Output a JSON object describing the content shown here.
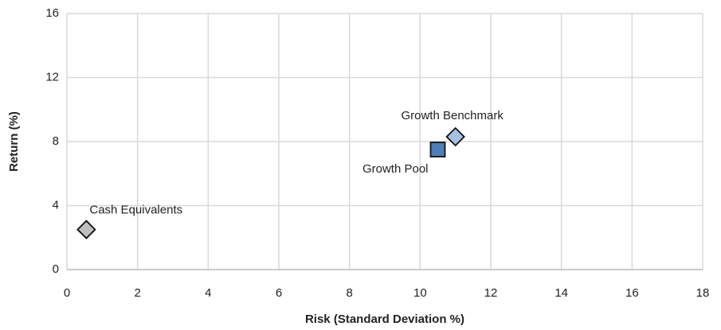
{
  "chart_data": {
    "type": "scatter",
    "xlabel": "Risk (Standard Deviation %)",
    "ylabel": "Return (%)",
    "xlim": [
      0,
      18
    ],
    "xticks": [
      0,
      2,
      4,
      6,
      8,
      10,
      12,
      14,
      16,
      18
    ],
    "ylim": [
      0,
      16
    ],
    "yticks": [
      0,
      4,
      8,
      12,
      16
    ],
    "grid": true,
    "series": [
      {
        "name": "Cash Equivalents",
        "color": "#bfbfbf",
        "marker": "diamond",
        "x": [
          0.55
        ],
        "values": [
          2.5
        ]
      },
      {
        "name": "Growth Pool",
        "color": "#4f7db5",
        "marker": "square",
        "x": [
          10.5
        ],
        "values": [
          7.5
        ]
      },
      {
        "name": "Growth Benchmark",
        "color": "#a8c1e3",
        "marker": "diamond",
        "x": [
          11.0
        ],
        "values": [
          8.3
        ]
      }
    ]
  }
}
